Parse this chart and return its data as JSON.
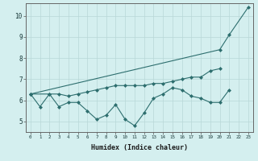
{
  "x": [
    0,
    1,
    2,
    3,
    4,
    5,
    6,
    7,
    8,
    9,
    10,
    11,
    12,
    13,
    14,
    15,
    16,
    17,
    18,
    19,
    20,
    21,
    22,
    23
  ],
  "line1": [
    6.3,
    5.7,
    6.3,
    5.7,
    5.9,
    5.9,
    5.5,
    5.1,
    5.3,
    5.8,
    5.1,
    4.8,
    5.4,
    6.1,
    6.3,
    6.6,
    6.5,
    6.2,
    6.1,
    5.9,
    5.9,
    6.5,
    null,
    null
  ],
  "line2": [
    6.3,
    null,
    6.3,
    6.3,
    6.2,
    6.3,
    6.4,
    6.5,
    6.6,
    6.7,
    6.7,
    6.7,
    6.7,
    6.8,
    6.8,
    6.9,
    7.0,
    7.1,
    7.1,
    7.4,
    7.5,
    null,
    null,
    null
  ],
  "line3": [
    6.3,
    null,
    null,
    null,
    null,
    null,
    null,
    null,
    null,
    null,
    null,
    null,
    null,
    null,
    null,
    null,
    null,
    null,
    null,
    null,
    8.4,
    9.1,
    null,
    10.4
  ],
  "color": "#2d6e6e",
  "bg_color": "#d4efef",
  "grid_color": "#b8d8d8",
  "xlabel": "Humidex (Indice chaleur)",
  "ylim": [
    4.5,
    10.6
  ],
  "xlim": [
    -0.5,
    23.5
  ],
  "yticks": [
    5,
    6,
    7,
    8,
    9,
    10
  ],
  "xticks": [
    0,
    1,
    2,
    3,
    4,
    5,
    6,
    7,
    8,
    9,
    10,
    11,
    12,
    13,
    14,
    15,
    16,
    17,
    18,
    19,
    20,
    21,
    22,
    23
  ],
  "marker": "D",
  "markersize": 2.0,
  "linewidth": 0.8
}
